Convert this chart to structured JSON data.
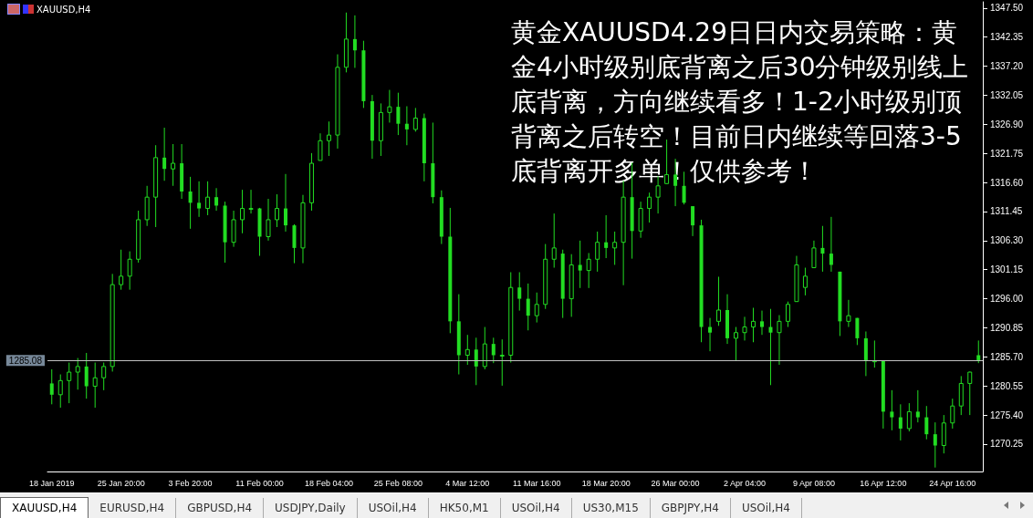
{
  "chart_data": {
    "type": "candlestick",
    "title": "XAUUSD,H4",
    "color": "#22dd22",
    "grid": false,
    "categories": [
      "18 Jan 2019",
      null,
      null,
      null,
      null,
      null,
      null,
      null,
      "25 Jan 20:00",
      null,
      null,
      null,
      null,
      null,
      null,
      null,
      "3 Feb 20:00",
      null,
      null,
      null,
      null,
      null,
      null,
      null,
      "11 Feb 00:00",
      null,
      null,
      null,
      null,
      null,
      null,
      null,
      "18 Feb 04:00",
      null,
      null,
      null,
      null,
      null,
      null,
      null,
      "25 Feb 08:00",
      null,
      null,
      null,
      null,
      null,
      null,
      null,
      "4 Mar 12:00",
      null,
      null,
      null,
      null,
      null,
      null,
      null,
      "11 Mar 16:00",
      null,
      null,
      null,
      null,
      null,
      null,
      null,
      "18 Mar 20:00",
      null,
      null,
      null,
      null,
      null,
      null,
      null,
      "26 Mar 00:00",
      null,
      null,
      null,
      null,
      null,
      null,
      null,
      "2 Apr 04:00",
      null,
      null,
      null,
      null,
      null,
      null,
      null,
      "9 Apr 08:00",
      null,
      null,
      null,
      null,
      null,
      null,
      null,
      "16 Apr 12:00",
      null,
      null,
      null,
      null,
      null,
      null,
      null,
      "24 Apr 16:00",
      null,
      null,
      null
    ],
    "ohlc": [
      [
        1281.0,
        1283.5,
        1277.3,
        1279.0
      ],
      [
        1279.0,
        1282.6,
        1276.7,
        1281.5
      ],
      [
        1281.5,
        1284.7,
        1277.5,
        1283.0
      ],
      [
        1283.0,
        1285.5,
        1279.9,
        1284.0
      ],
      [
        1284.0,
        1286.4,
        1278.3,
        1280.5
      ],
      [
        1280.5,
        1284.7,
        1276.7,
        1282.0
      ],
      [
        1282.0,
        1284.7,
        1279.8,
        1284.0
      ],
      [
        1284.0,
        1300.4,
        1283.1,
        1298.5
      ],
      [
        1298.5,
        1304.7,
        1297.6,
        1300.0
      ],
      [
        1300.0,
        1304.4,
        1297.6,
        1303.0
      ],
      [
        1303.0,
        1311.6,
        1302.4,
        1310.0
      ],
      [
        1310.0,
        1316.0,
        1308.9,
        1314.0
      ],
      [
        1314.0,
        1323.2,
        1308.7,
        1321.0
      ],
      [
        1321.0,
        1326.3,
        1316.9,
        1319.0
      ],
      [
        1319.0,
        1323.4,
        1316.0,
        1320.0
      ],
      [
        1320.0,
        1323.4,
        1313.7,
        1315.0
      ],
      [
        1315.0,
        1317.6,
        1308.4,
        1313.0
      ],
      [
        1313.0,
        1316.8,
        1310.5,
        1312.0
      ],
      [
        1312.0,
        1316.8,
        1310.8,
        1314.0
      ],
      [
        1314.0,
        1315.6,
        1311.6,
        1312.5
      ],
      [
        1312.5,
        1313.2,
        1302.4,
        1306.0
      ],
      [
        1306.0,
        1311.6,
        1305.2,
        1310.0
      ],
      [
        1310.0,
        1315.3,
        1307.6,
        1312.0
      ],
      [
        1312.0,
        1315.3,
        1311.1,
        1312.0
      ],
      [
        1312.0,
        1312.1,
        1303.6,
        1307.0
      ],
      [
        1307.0,
        1313.7,
        1306.3,
        1310.0
      ],
      [
        1310.0,
        1314.5,
        1308.7,
        1312.0
      ],
      [
        1312.0,
        1318.1,
        1307.9,
        1309.0
      ],
      [
        1309.0,
        1309.2,
        1302.3,
        1305.0
      ],
      [
        1305.0,
        1314.4,
        1302.3,
        1313.0
      ],
      [
        1313.0,
        1321.8,
        1311.6,
        1320.0
      ],
      [
        1320.5,
        1325.3,
        1320.5,
        1324.0
      ],
      [
        1324.0,
        1327.4,
        1321.3,
        1325.0
      ],
      [
        1325.0,
        1339.3,
        1322.6,
        1337.0
      ],
      [
        1337.0,
        1346.7,
        1336.1,
        1342.0
      ],
      [
        1342.0,
        1346.2,
        1336.9,
        1340.0
      ],
      [
        1340.0,
        1341.7,
        1329.8,
        1331.0
      ],
      [
        1331.0,
        1332.1,
        1320.8,
        1324.0
      ],
      [
        1324.0,
        1330.6,
        1321.3,
        1329.0
      ],
      [
        1329.0,
        1333.0,
        1327.2,
        1330.0
      ],
      [
        1330.0,
        1332.5,
        1325.0,
        1327.0
      ],
      [
        1327.0,
        1330.1,
        1323.2,
        1326.0
      ],
      [
        1326.0,
        1329.8,
        1325.6,
        1328.0
      ],
      [
        1328.0,
        1328.8,
        1316.8,
        1320.0
      ],
      [
        1320.0,
        1327.2,
        1312.9,
        1314.0
      ],
      [
        1314.0,
        1315.2,
        1305.7,
        1307.0
      ],
      [
        1307.0,
        1312.1,
        1289.9,
        1292.0
      ],
      [
        1292.0,
        1296.8,
        1282.6,
        1286.0
      ],
      [
        1286.0,
        1289.6,
        1284.3,
        1287.0
      ],
      [
        1287.0,
        1289.1,
        1280.7,
        1284.0
      ],
      [
        1284.0,
        1291.0,
        1283.5,
        1288.0
      ],
      [
        1288.0,
        1289.1,
        1284.6,
        1286.0
      ],
      [
        1286.0,
        1288.8,
        1280.6,
        1286.0
      ],
      [
        1286.0,
        1300.7,
        1284.7,
        1298.0
      ],
      [
        1298.0,
        1300.7,
        1293.9,
        1296.0
      ],
      [
        1296.0,
        1298.7,
        1290.4,
        1293.0
      ],
      [
        1293.0,
        1297.1,
        1291.8,
        1295.0
      ],
      [
        1295.0,
        1305.7,
        1294.2,
        1303.0
      ],
      [
        1303.0,
        1311.1,
        1301.5,
        1305.0
      ],
      [
        1304.0,
        1304.7,
        1292.6,
        1296.0
      ],
      [
        1296.0,
        1303.9,
        1292.8,
        1302.0
      ],
      [
        1302.0,
        1306.3,
        1297.9,
        1301.0
      ],
      [
        1301.0,
        1304.1,
        1297.9,
        1303.0
      ],
      [
        1303.0,
        1307.9,
        1300.8,
        1306.0
      ],
      [
        1306.0,
        1310.8,
        1303.2,
        1305.0
      ],
      [
        1305.0,
        1307.9,
        1302.0,
        1306.0
      ],
      [
        1306.0,
        1316.9,
        1298.4,
        1314.0
      ],
      [
        1314.0,
        1320.1,
        1303.1,
        1308.0
      ],
      [
        1308.0,
        1313.2,
        1306.8,
        1312.0
      ],
      [
        1312.0,
        1314.8,
        1309.5,
        1314.0
      ],
      [
        1314.0,
        1317.7,
        1311.1,
        1316.0
      ],
      [
        1316.4,
        1324.2,
        1316.4,
        1318.0
      ],
      [
        1318.0,
        1320.8,
        1312.4,
        1316.0
      ],
      [
        1316.0,
        1318.5,
        1312.7,
        1313.0
      ],
      [
        1312.4,
        1312.4,
        1307.1,
        1309.0
      ],
      [
        1309.0,
        1310.0,
        1288.3,
        1291.0
      ],
      [
        1291.0,
        1292.6,
        1286.7,
        1290.0
      ],
      [
        1292.0,
        1299.9,
        1291.2,
        1294.0
      ],
      [
        1294.0,
        1296.8,
        1288.0,
        1289.0
      ],
      [
        1289.0,
        1291.0,
        1285.1,
        1290.0
      ],
      [
        1290.0,
        1292.8,
        1288.6,
        1291.0
      ],
      [
        1291.0,
        1294.4,
        1288.3,
        1292.0
      ],
      [
        1292.0,
        1293.9,
        1289.6,
        1291.0
      ],
      [
        1291.0,
        1294.2,
        1280.7,
        1290.0
      ],
      [
        1290.0,
        1293.1,
        1284.3,
        1292.0
      ],
      [
        1292.0,
        1295.5,
        1291.0,
        1295.0
      ],
      [
        1295.5,
        1303.6,
        1295.5,
        1302.0
      ],
      [
        1298.0,
        1301.5,
        1296.6,
        1300.0
      ],
      [
        1301.5,
        1306.3,
        1301.5,
        1305.0
      ],
      [
        1305.0,
        1308.9,
        1300.8,
        1304.0
      ],
      [
        1304.0,
        1310.5,
        1300.8,
        1302.0
      ],
      [
        1300.8,
        1300.8,
        1289.4,
        1292.0
      ],
      [
        1292.0,
        1295.8,
        1291.0,
        1293.0
      ],
      [
        1292.6,
        1292.6,
        1287.8,
        1289.0
      ],
      [
        1289.0,
        1290.2,
        1282.3,
        1285.0
      ],
      [
        1285.0,
        1288.6,
        1283.8,
        1285.0
      ],
      [
        1285.0,
        1285.1,
        1273.0,
        1276.0
      ],
      [
        1276.0,
        1279.8,
        1272.7,
        1275.0
      ],
      [
        1275.0,
        1277.3,
        1270.9,
        1273.0
      ],
      [
        1273.0,
        1277.5,
        1272.5,
        1276.0
      ],
      [
        1276.0,
        1279.8,
        1274.1,
        1275.0
      ],
      [
        1275.0,
        1277.0,
        1271.1,
        1272.0
      ],
      [
        1272.0,
        1274.1,
        1266.1,
        1270.0
      ],
      [
        1270.0,
        1275.4,
        1268.6,
        1274.0
      ],
      [
        1274.0,
        1278.3,
        1273.0,
        1277.0
      ],
      [
        1277.0,
        1282.3,
        1275.4,
        1281.0
      ],
      [
        1281.0,
        1283.1,
        1275.4,
        1283.0
      ],
      [
        1286.0,
        1288.6,
        1284.6,
        1285.1
      ]
    ],
    "ylim": [
      1265.4,
      1348.6
    ],
    "yticks": [
      {
        "value": 1270.25,
        "label": "1270.25"
      },
      {
        "value": 1275.4,
        "label": "1275.40"
      },
      {
        "value": 1280.55,
        "label": "1280.55"
      },
      {
        "value": 1285.7,
        "label": "1285.70"
      },
      {
        "value": 1290.85,
        "label": "1290.85"
      },
      {
        "value": 1296,
        "label": "1296.00"
      },
      {
        "value": 1301.15,
        "label": "1301.15"
      },
      {
        "value": 1306.3,
        "label": "1306.30"
      },
      {
        "value": 1311.45,
        "label": "1311.45"
      },
      {
        "value": 1316.6,
        "label": "1316.60"
      },
      {
        "value": 1321.75,
        "label": "1321.75"
      },
      {
        "value": 1326.9,
        "label": "1326.90"
      },
      {
        "value": 1332.05,
        "label": "1332.05"
      },
      {
        "value": 1337.2,
        "label": "1337.20"
      },
      {
        "value": 1342.35,
        "label": "1342.35"
      },
      {
        "value": 1347.5,
        "label": "1347.50"
      }
    ],
    "ref_lines": [
      {
        "axis": "y",
        "value": 1285.08,
        "label": "1285.08",
        "color": "#c0c0c0"
      }
    ],
    "annotations": [
      "黄金XAUUSD4.29日日内交易策略：黄金4小时级别底背离之后30分钟级别线上底背离，方向继续看多！1-2小时级别顶背离之后转空！目前日内继续等回落3-5底背离开多单！仅供参考！",
      "XAUUSD,H4",
      "EURUSD,H4",
      "GBPUSD,H4",
      "USDJPY,Daily",
      "USOil,H4",
      "HK50,M1",
      "USOil,H4",
      "US30,M15",
      "GBPJPY,H4",
      "USOil,H4"
    ]
  }
}
